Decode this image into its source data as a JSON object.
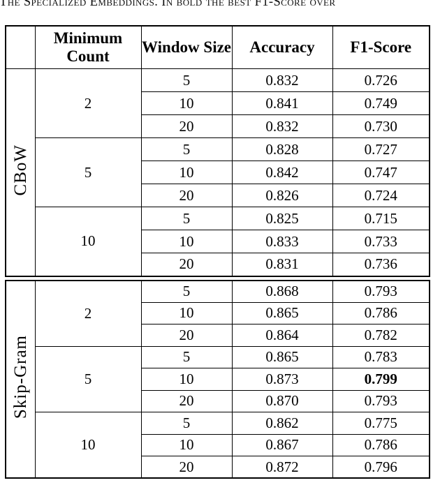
{
  "caption": "The Specialized Embeddings. In bold the best F1-Score over",
  "table": {
    "headers": [
      "",
      "Minimum Count",
      "Window Size",
      "Accuracy",
      "F1-Score"
    ],
    "sections": [
      {
        "label": "CBoW",
        "groups": [
          {
            "min_count": "2",
            "rows": [
              {
                "window_size": "5",
                "accuracy": "0.832",
                "f1_score": "0.726",
                "best": false
              },
              {
                "window_size": "10",
                "accuracy": "0.841",
                "f1_score": "0.749",
                "best": false
              },
              {
                "window_size": "20",
                "accuracy": "0.832",
                "f1_score": "0.730",
                "best": false
              }
            ]
          },
          {
            "min_count": "5",
            "rows": [
              {
                "window_size": "5",
                "accuracy": "0.828",
                "f1_score": "0.727",
                "best": false
              },
              {
                "window_size": "10",
                "accuracy": "0.842",
                "f1_score": "0.747",
                "best": false
              },
              {
                "window_size": "20",
                "accuracy": "0.826",
                "f1_score": "0.724",
                "best": false
              }
            ]
          },
          {
            "min_count": "10",
            "rows": [
              {
                "window_size": "5",
                "accuracy": "0.825",
                "f1_score": "0.715",
                "best": false
              },
              {
                "window_size": "10",
                "accuracy": "0.833",
                "f1_score": "0.733",
                "best": false
              },
              {
                "window_size": "20",
                "accuracy": "0.831",
                "f1_score": "0.736",
                "best": false
              }
            ]
          }
        ]
      },
      {
        "label": "Skip-Gram",
        "groups": [
          {
            "min_count": "2",
            "rows": [
              {
                "window_size": "5",
                "accuracy": "0.868",
                "f1_score": "0.793",
                "best": false
              },
              {
                "window_size": "10",
                "accuracy": "0.865",
                "f1_score": "0.786",
                "best": false
              },
              {
                "window_size": "20",
                "accuracy": "0.864",
                "f1_score": "0.782",
                "best": false
              }
            ]
          },
          {
            "min_count": "5",
            "rows": [
              {
                "window_size": "5",
                "accuracy": "0.865",
                "f1_score": "0.783",
                "best": false
              },
              {
                "window_size": "10",
                "accuracy": "0.873",
                "f1_score": "0.799",
                "best": true
              },
              {
                "window_size": "20",
                "accuracy": "0.870",
                "f1_score": "0.793",
                "best": false
              }
            ]
          },
          {
            "min_count": "10",
            "rows": [
              {
                "window_size": "5",
                "accuracy": "0.862",
                "f1_score": "0.775",
                "best": false
              },
              {
                "window_size": "10",
                "accuracy": "0.867",
                "f1_score": "0.786",
                "best": false
              },
              {
                "window_size": "20",
                "accuracy": "0.872",
                "f1_score": "0.796",
                "best": false
              }
            ]
          }
        ]
      }
    ]
  }
}
